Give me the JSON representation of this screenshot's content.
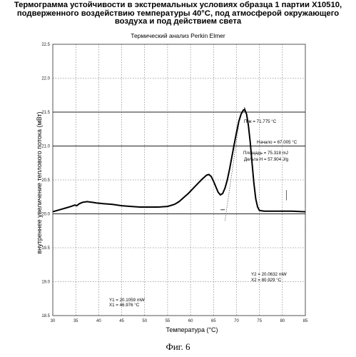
{
  "header": {
    "title": "Термограмма устойчивости в экстремальных условиях образца 1 партии X10510, подверженного воздействию температуры 40°С, под атмосферой окружающего воздуха и под действием света"
  },
  "figure_caption": "Фиг. 6",
  "chart_data": {
    "type": "line",
    "title": "Термический анализ Perkin Elmer",
    "xlabel": "Температура (°С)",
    "ylabel": "внутреннее увеличение теплового потока (мВт)",
    "xlim": [
      30,
      85
    ],
    "ylim": [
      18.5,
      22.5
    ],
    "x_ticks": [
      "30",
      "35",
      "40",
      "45",
      "50",
      "55",
      "60",
      "65",
      "70",
      "75",
      "80",
      "85"
    ],
    "y_ticks": [
      "18.5",
      "19.0",
      "19.5",
      "20.0",
      "20.5",
      "21.0",
      "21.5",
      "22.0",
      "22.5"
    ],
    "grid": true,
    "series": [
      {
        "x": [
          30,
          31,
          32,
          33,
          34,
          34.8,
          35.2,
          35.8,
          36.5,
          37.5,
          38.5,
          39.5,
          41,
          43,
          45,
          47,
          49,
          51,
          53,
          55,
          56.5,
          57.5,
          58.5,
          59.5,
          60.5,
          61.5,
          62.5,
          63.5,
          64,
          64.5,
          65,
          65.5,
          66,
          66.5,
          67,
          67.5,
          68,
          68.5,
          69,
          69.5,
          70,
          70.5,
          71,
          71.5,
          71.8,
          72.2,
          72.6,
          73,
          73.4,
          73.8,
          74.2,
          74.6,
          75,
          76,
          78,
          80,
          82,
          85
        ],
        "y": [
          20.03,
          20.05,
          20.07,
          20.09,
          20.11,
          20.13,
          20.12,
          20.15,
          20.17,
          20.18,
          20.17,
          20.16,
          20.15,
          20.14,
          20.12,
          20.11,
          20.1,
          20.1,
          20.1,
          20.11,
          20.14,
          20.18,
          20.24,
          20.3,
          20.37,
          20.44,
          20.51,
          20.57,
          20.58,
          20.55,
          20.48,
          20.4,
          20.32,
          20.28,
          20.3,
          20.38,
          20.5,
          20.66,
          20.84,
          21.02,
          21.2,
          21.36,
          21.47,
          21.53,
          21.54,
          21.47,
          21.3,
          21.05,
          20.75,
          20.45,
          20.22,
          20.1,
          20.05,
          20.04,
          20.04,
          20.04,
          20.04,
          20.03
        ]
      }
    ],
    "reference_lines": [
      {
        "type": "horizontal",
        "y": 21.5
      },
      {
        "type": "horizontal",
        "y": 21.0
      },
      {
        "type": "horizontal",
        "y": 20.0
      }
    ],
    "annotations": {
      "peak": "Пик = 71.775 °C",
      "onset": "Начало = 67.005 °C",
      "area": "Площадь = 75.318 mJ",
      "delta_h": "Дельта Н = 57.904 J/g",
      "point_left_y": "Y1 = 20.1059 mW",
      "point_left_x": "X1 = 46.976 °C",
      "point_right_y": "Y2 = 20.0632 mW",
      "point_right_x": "X2 = 80.929 °C"
    }
  }
}
